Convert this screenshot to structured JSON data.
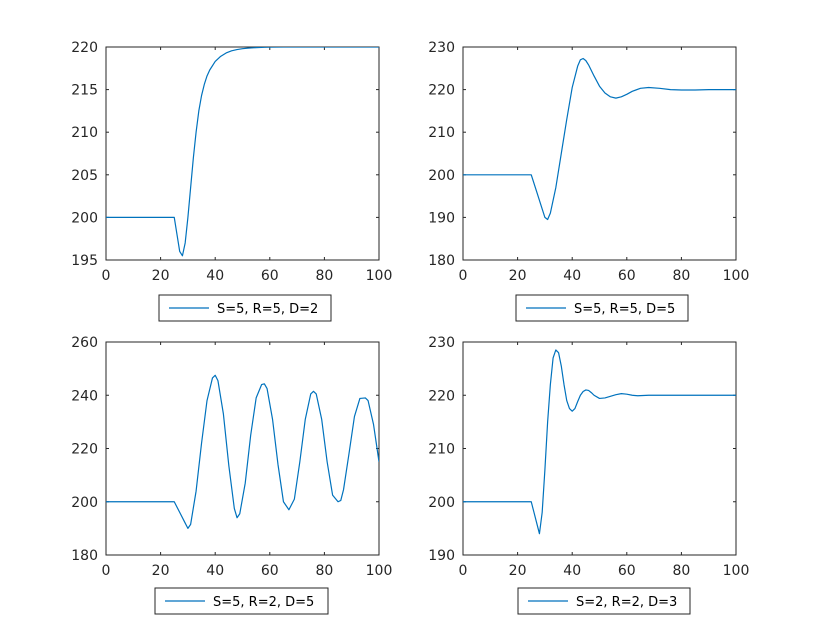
{
  "colors": {
    "line": "#0072bd",
    "axis": "#262626",
    "background": "#ffffff"
  },
  "chart_data": [
    {
      "type": "line",
      "xlim": [
        0,
        100
      ],
      "ylim": [
        195,
        220
      ],
      "xticks": [
        0,
        20,
        40,
        60,
        80,
        100
      ],
      "yticks": [
        195,
        200,
        205,
        210,
        215,
        220
      ],
      "grid": false,
      "legend_position": "below",
      "series": [
        {
          "name": "S=5, R=5, D=2",
          "x": [
            0,
            25,
            26,
            27,
            28,
            29,
            30,
            31,
            32,
            33,
            34,
            35,
            36,
            37,
            38,
            40,
            42,
            44,
            46,
            48,
            50,
            52,
            55,
            58,
            60,
            65,
            70,
            100
          ],
          "y": [
            200,
            200,
            198,
            196,
            195.5,
            197,
            200,
            203.5,
            207,
            210,
            212.5,
            214.3,
            215.6,
            216.6,
            217.3,
            218.3,
            218.9,
            219.3,
            219.55,
            219.7,
            219.8,
            219.87,
            219.93,
            219.97,
            219.98,
            220,
            220,
            220
          ]
        }
      ]
    },
    {
      "type": "line",
      "xlim": [
        0,
        100
      ],
      "ylim": [
        180,
        230
      ],
      "xticks": [
        0,
        20,
        40,
        60,
        80,
        100
      ],
      "yticks": [
        180,
        190,
        200,
        210,
        220,
        230
      ],
      "grid": false,
      "legend_position": "below",
      "series": [
        {
          "name": "S=5, R=5, D=5",
          "x": [
            0,
            25,
            27,
            29,
            30,
            31,
            32,
            34,
            36,
            38,
            40,
            42,
            43,
            44,
            45,
            46,
            48,
            50,
            52,
            54,
            56,
            58,
            60,
            62,
            65,
            68,
            72,
            76,
            80,
            85,
            90,
            100
          ],
          "y": [
            200,
            200,
            196,
            192,
            190,
            189.5,
            191,
            197,
            205,
            213,
            220.5,
            225.5,
            227,
            227.3,
            226.8,
            225.8,
            223.2,
            220.8,
            219.2,
            218.3,
            218,
            218.3,
            218.9,
            219.6,
            220.3,
            220.5,
            220.3,
            220,
            219.9,
            219.9,
            220,
            220
          ]
        }
      ]
    },
    {
      "type": "line",
      "xlim": [
        0,
        100
      ],
      "ylim": [
        180,
        260
      ],
      "xticks": [
        0,
        20,
        40,
        60,
        80,
        100
      ],
      "yticks": [
        180,
        200,
        220,
        240,
        260
      ],
      "grid": false,
      "legend_position": "below",
      "series": [
        {
          "name": "S=5, R=2, D=5",
          "x": [
            0,
            25,
            27,
            29,
            30,
            31,
            33,
            35,
            37,
            39,
            40,
            41,
            43,
            45,
            47,
            48,
            49,
            51,
            53,
            55,
            57,
            58,
            59,
            61,
            63,
            65,
            67,
            69,
            71,
            73,
            75,
            76,
            77,
            79,
            81,
            83,
            85,
            86,
            87,
            89,
            91,
            93,
            95,
            96,
            98,
            100
          ],
          "y": [
            200,
            200,
            196,
            192,
            190,
            191.5,
            204,
            222,
            238,
            246.5,
            247.5,
            245.5,
            233,
            213.5,
            197.5,
            194,
            195.5,
            207,
            225,
            239,
            244,
            244.3,
            242.5,
            231,
            214,
            200,
            197,
            201,
            215,
            231,
            240.5,
            241.5,
            240.5,
            231,
            215,
            202.5,
            200,
            200.5,
            204.5,
            218,
            232,
            238.8,
            239,
            238,
            229,
            215
          ]
        }
      ]
    },
    {
      "type": "line",
      "xlim": [
        0,
        100
      ],
      "ylim": [
        190,
        230
      ],
      "xticks": [
        0,
        20,
        40,
        60,
        80,
        100
      ],
      "yticks": [
        190,
        200,
        210,
        220,
        230
      ],
      "grid": false,
      "legend_position": "below",
      "series": [
        {
          "name": "S=2, R=2, D=3",
          "x": [
            0,
            25,
            26,
            27,
            28,
            29,
            30,
            31,
            32,
            33,
            34,
            35,
            36,
            37,
            38,
            39,
            40,
            41,
            42,
            43,
            44,
            45,
            46,
            47,
            48,
            50,
            52,
            54,
            56,
            58,
            60,
            62,
            64,
            68,
            72,
            80,
            100
          ],
          "y": [
            200,
            200,
            198,
            196,
            194,
            198,
            206,
            215,
            222,
            227,
            228.5,
            228,
            225.5,
            222,
            219,
            217.5,
            217,
            217.5,
            218.8,
            220,
            220.7,
            221,
            220.9,
            220.5,
            220,
            219.4,
            219.5,
            219.8,
            220.1,
            220.3,
            220.2,
            220,
            219.9,
            220,
            220,
            220,
            220
          ]
        }
      ]
    }
  ]
}
